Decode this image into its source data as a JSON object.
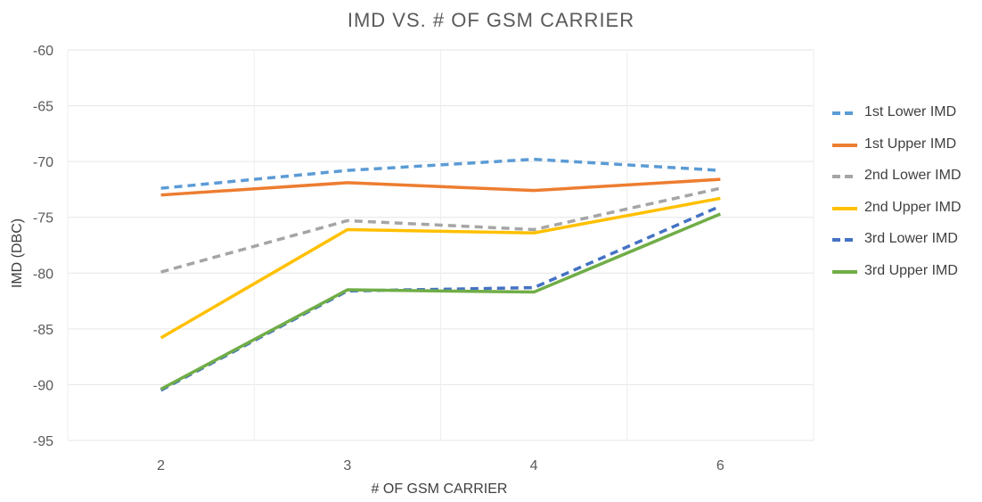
{
  "chart_data": {
    "type": "line",
    "title": "IMD VS. # OF GSM CARRIER",
    "xlabel": "# OF GSM CARRIER",
    "ylabel": "IMD (DBC)",
    "categories": [
      "2",
      "3",
      "4",
      "6"
    ],
    "ylim": [
      -95,
      -60
    ],
    "yticks": [
      -60,
      -65,
      -70,
      -75,
      -80,
      -85,
      -90,
      -95
    ],
    "grid": true,
    "legend_position": "right",
    "series": [
      {
        "name": "1st Lower IMD",
        "values": [
          -72.4,
          -70.8,
          -69.8,
          -70.8
        ],
        "color": "#5B9BD5",
        "dashed": true
      },
      {
        "name": "1st Upper IMD",
        "values": [
          -73.0,
          -71.9,
          -72.6,
          -71.6
        ],
        "color": "#ED7D31",
        "dashed": false
      },
      {
        "name": "2nd Lower IMD",
        "values": [
          -79.9,
          -75.3,
          -76.1,
          -72.4
        ],
        "color": "#A5A5A5",
        "dashed": true
      },
      {
        "name": "2nd Upper IMD",
        "values": [
          -85.8,
          -76.1,
          -76.4,
          -73.3
        ],
        "color": "#FFC000",
        "dashed": false
      },
      {
        "name": "3rd Lower IMD",
        "values": [
          -90.5,
          -81.6,
          -81.3,
          -74.0
        ],
        "color": "#4472C4",
        "dashed": true
      },
      {
        "name": "3rd Upper IMD",
        "values": [
          -90.4,
          -81.5,
          -81.7,
          -74.7
        ],
        "color": "#70AD47",
        "dashed": false
      }
    ]
  }
}
